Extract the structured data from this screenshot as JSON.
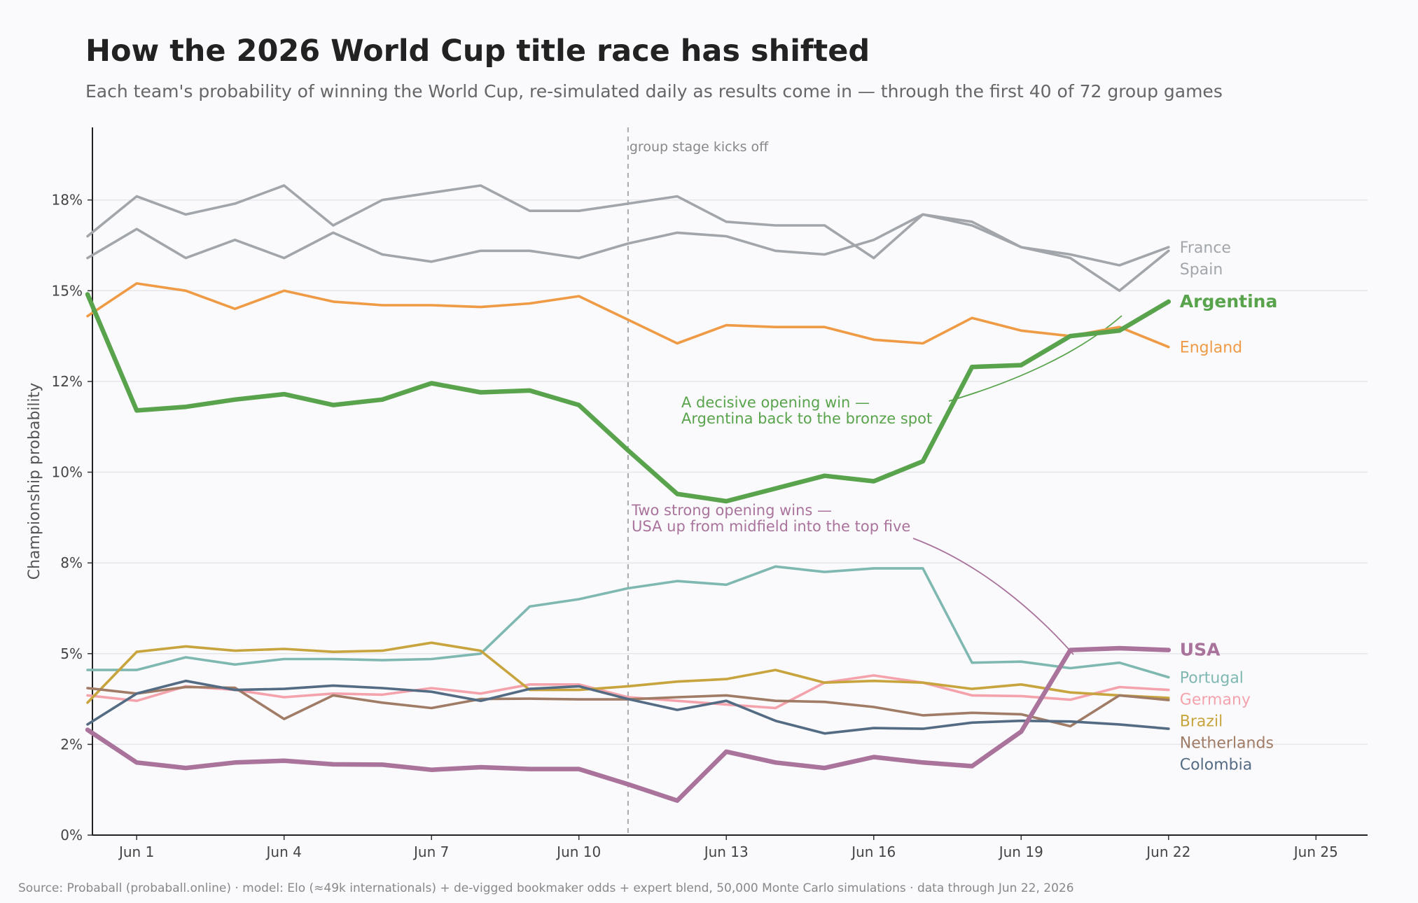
{
  "title": "How the 2026 World Cup title race has shifted",
  "subtitle": "Each team's probability of winning the World Cup, re-simulated daily as results come in — through the first 40 of 72 group games",
  "source": "Source: Probaball (probaball.online) · model: Elo (≈49k internationals) + de-vigged bookmaker odds + expert blend, 50,000 Monte Carlo simulations · data through Jun 22, 2026",
  "chart_data": {
    "type": "line",
    "ylabel": "Championship probability",
    "xlabel": "",
    "ylim": [
      0,
      19.5
    ],
    "x_tick_days": [
      1,
      4,
      7,
      10,
      13,
      16,
      19,
      22,
      25
    ],
    "x_tick_labels": [
      "Jun 1",
      "Jun 4",
      "Jun 7",
      "Jun 10",
      "Jun 13",
      "Jun 16",
      "Jun 19",
      "Jun 22",
      "Jun 25"
    ],
    "y_ticks": [
      0,
      2.5,
      5,
      7.5,
      10,
      12.5,
      15,
      17.5
    ],
    "y_tick_labels": [
      "0%",
      "2%",
      "5%",
      "8%",
      "10%",
      "12%",
      "15%",
      "18%"
    ],
    "grid": "horizontal",
    "x_dates": [
      "May 31",
      "Jun 1",
      "Jun 2",
      "Jun 3",
      "Jun 4",
      "Jun 5",
      "Jun 6",
      "Jun 7",
      "Jun 8",
      "Jun 9",
      "Jun 10",
      "Jun 11",
      "Jun 12",
      "Jun 13",
      "Jun 14",
      "Jun 15",
      "Jun 16",
      "Jun 17",
      "Jun 18",
      "Jun 19",
      "Jun 20",
      "Jun 21",
      "Jun 22"
    ],
    "series": [
      {
        "name": "Spain",
        "color": "#a2a6aa",
        "highlight": false,
        "values": [
          16.5,
          17.6,
          17.1,
          17.4,
          17.9,
          16.8,
          17.5,
          17.7,
          17.9,
          17.2,
          17.2,
          17.4,
          17.6,
          16.9,
          16.8,
          16.8,
          15.9,
          17.1,
          16.9,
          16.2,
          15.9,
          15.0,
          16.1
        ]
      },
      {
        "name": "France",
        "color": "#a2a6aa",
        "highlight": false,
        "values": [
          15.9,
          16.7,
          15.9,
          16.4,
          15.9,
          16.6,
          16.0,
          15.8,
          16.1,
          16.1,
          15.9,
          16.3,
          16.6,
          16.5,
          16.1,
          16.0,
          16.4,
          17.1,
          16.8,
          16.2,
          16.0,
          15.7,
          16.2
        ]
      },
      {
        "name": "England",
        "color": "#ef9a45",
        "highlight": false,
        "values": [
          14.3,
          15.2,
          15.0,
          14.5,
          15.0,
          14.7,
          14.6,
          14.6,
          14.55,
          14.65,
          14.85,
          14.2,
          13.55,
          14.05,
          14.0,
          14.0,
          13.65,
          13.55,
          14.25,
          13.9,
          13.75,
          14.0,
          13.45
        ]
      },
      {
        "name": "Argentina",
        "color": "#58a34c",
        "highlight": true,
        "values": [
          14.9,
          11.7,
          11.8,
          12.0,
          12.15,
          11.85,
          12.0,
          12.45,
          12.2,
          12.25,
          11.85,
          10.6,
          9.4,
          9.2,
          9.55,
          9.9,
          9.75,
          10.3,
          12.9,
          12.95,
          13.75,
          13.9,
          14.7
        ]
      },
      {
        "name": "USA",
        "color": "#a9739c",
        "highlight": true,
        "values": [
          2.9,
          2.0,
          1.85,
          2.0,
          2.05,
          1.95,
          1.94,
          1.8,
          1.87,
          1.82,
          1.82,
          1.4,
          0.95,
          2.3,
          2.0,
          1.85,
          2.15,
          2.0,
          1.9,
          2.85,
          5.1,
          5.15,
          5.1
        ]
      },
      {
        "name": "Portugal",
        "color": "#7fb8b1",
        "highlight": false,
        "values": [
          4.55,
          4.55,
          4.9,
          4.7,
          4.85,
          4.85,
          4.82,
          4.85,
          5.0,
          6.3,
          6.5,
          6.8,
          7.0,
          6.9,
          7.4,
          7.25,
          7.35,
          7.35,
          4.75,
          4.78,
          4.6,
          4.75,
          4.35
        ]
      },
      {
        "name": "Germany",
        "color": "#f4a3ad",
        "highlight": false,
        "values": [
          3.85,
          3.7,
          4.1,
          4.0,
          3.8,
          3.9,
          3.87,
          4.05,
          3.9,
          4.15,
          4.15,
          3.8,
          3.7,
          3.6,
          3.5,
          4.2,
          4.4,
          4.2,
          3.85,
          3.83,
          3.73,
          4.08,
          4.0
        ]
      },
      {
        "name": "Brazil",
        "color": "#c7a43d",
        "highlight": false,
        "values": [
          3.65,
          5.05,
          5.2,
          5.08,
          5.13,
          5.05,
          5.08,
          5.3,
          5.08,
          4.0,
          4.0,
          4.1,
          4.23,
          4.3,
          4.55,
          4.2,
          4.25,
          4.2,
          4.03,
          4.15,
          3.93,
          3.85,
          3.78
        ]
      },
      {
        "name": "Netherlands",
        "color": "#a07c66",
        "highlight": false,
        "values": [
          4.05,
          3.9,
          4.08,
          4.06,
          3.2,
          3.85,
          3.65,
          3.5,
          3.75,
          3.76,
          3.74,
          3.74,
          3.8,
          3.85,
          3.7,
          3.67,
          3.53,
          3.3,
          3.37,
          3.33,
          3.0,
          3.85,
          3.72
        ]
      },
      {
        "name": "Colombia",
        "color": "#546b84",
        "highlight": false,
        "values": [
          3.05,
          3.9,
          4.25,
          4.0,
          4.03,
          4.12,
          4.05,
          3.95,
          3.7,
          4.03,
          4.1,
          3.75,
          3.45,
          3.7,
          3.15,
          2.8,
          2.95,
          2.93,
          3.1,
          3.15,
          3.13,
          3.05,
          2.93
        ]
      }
    ],
    "annotations": [
      {
        "text": [
          "group stage kicks off"
        ],
        "color": "#888888"
      },
      {
        "text": [
          "A decisive opening win —",
          "Argentina back to the bronze spot"
        ],
        "color": "#58a34c"
      },
      {
        "text": [
          "Two strong opening wins —",
          "USA up from midfield into the top five"
        ],
        "color": "#a9739c"
      }
    ]
  }
}
